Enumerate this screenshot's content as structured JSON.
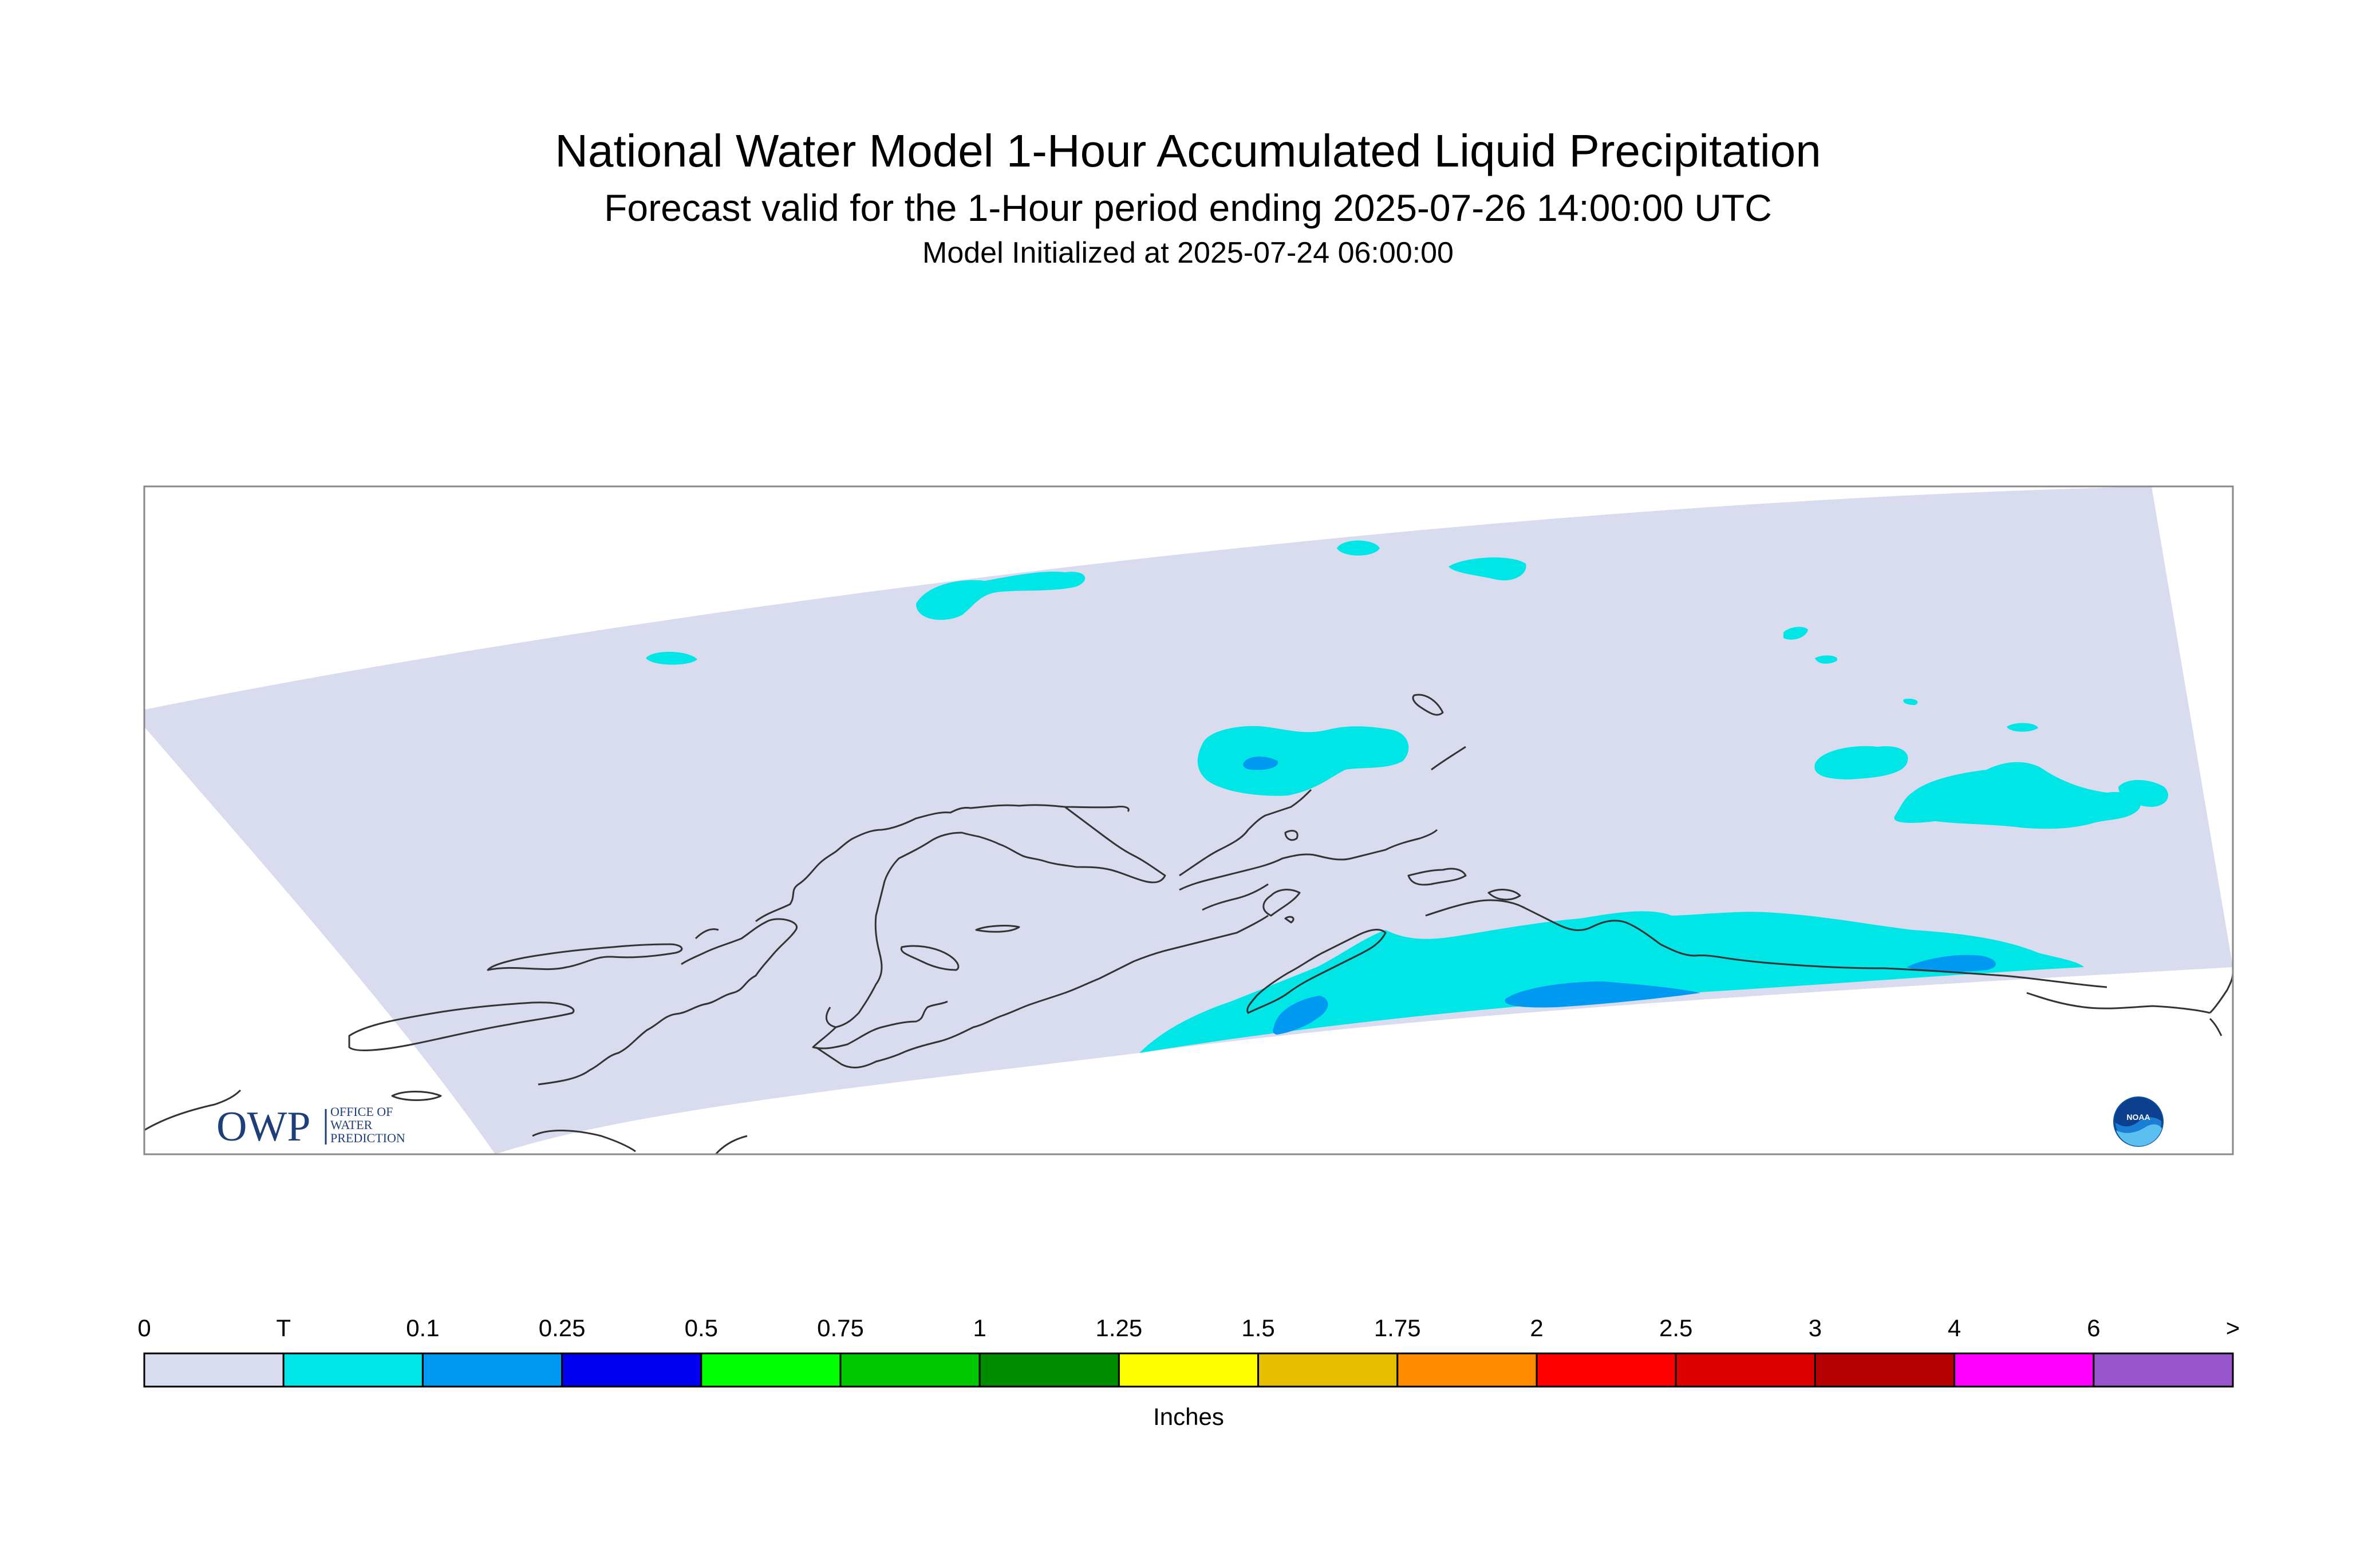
{
  "title": "National Water Model 1-Hour Accumulated Liquid Precipitation",
  "subtitle": "Forecast valid for the 1-Hour period ending 2025-07-26 14:00:00 UTC",
  "init_line": "Model Initialized at 2025-07-24 06:00:00",
  "logos": {
    "owp_mark": "OWP",
    "owp_text_line1": "OFFICE OF",
    "owp_text_line2": "WATER",
    "owp_text_line3": "PREDICTION",
    "noaa_text": "NOAA"
  },
  "legend": {
    "unit_label": "Inches",
    "tick_labels": [
      "0",
      "T",
      "0.1",
      "0.25",
      "0.5",
      "0.75",
      "1",
      "1.25",
      "1.5",
      "1.75",
      "2",
      "2.5",
      "3",
      "4",
      "6",
      ">"
    ],
    "bin_colors": [
      "#d9dbee",
      "#00e6e6",
      "#0099f2",
      "#0000ee",
      "#00ff00",
      "#00c800",
      "#008c00",
      "#ffff00",
      "#e6be00",
      "#ff8c00",
      "#ff0000",
      "#dc0000",
      "#b40000",
      "#ff00ff",
      "#9955cc"
    ]
  },
  "map": {
    "domain_color": "#d9dbee",
    "coast_color": "#333333",
    "frame_color": "#888888"
  }
}
